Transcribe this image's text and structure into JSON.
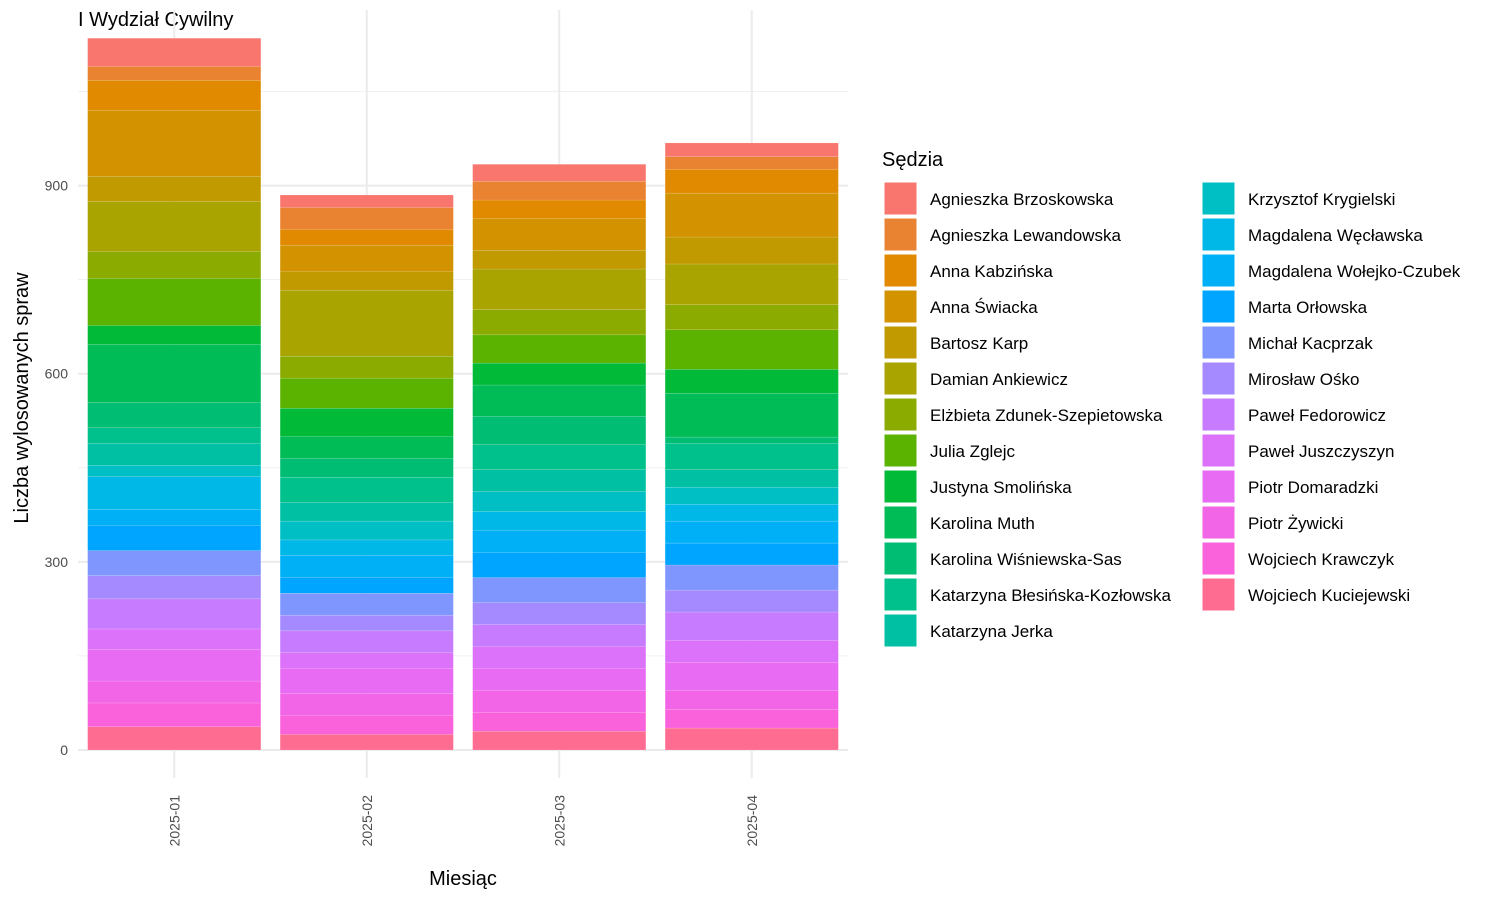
{
  "chart_data": {
    "type": "bar",
    "stacked": true,
    "title": "I Wydział Cywilny",
    "xlabel": "Miesiąc",
    "ylabel": "Liczba wylosowanych spraw",
    "legend_title": "Sędzia",
    "legend_position": "right",
    "grid": true,
    "ylim": [
      0,
      1180
    ],
    "yticks": [
      0,
      300,
      600,
      900
    ],
    "categories": [
      "2025-01",
      "2025-02",
      "2025-03",
      "2025-04"
    ],
    "series": [
      {
        "name": "Agnieszka Brzoskowska",
        "color": "#F8766D",
        "values": [
          45,
          20,
          27,
          22
        ]
      },
      {
        "name": "Agnieszka Lewandowska",
        "color": "#EA8331",
        "values": [
          22,
          35,
          30,
          20
        ]
      },
      {
        "name": "Anna Kabzińska",
        "color": "#E18A00",
        "values": [
          48,
          25,
          30,
          38
        ]
      },
      {
        "name": "Anna Świacka",
        "color": "#D39200",
        "values": [
          105,
          42,
          50,
          70
        ]
      },
      {
        "name": "Bartosz Karp",
        "color": "#C19A00",
        "values": [
          40,
          30,
          30,
          43
        ]
      },
      {
        "name": "Damian Ankiewicz",
        "color": "#AAA400",
        "values": [
          80,
          105,
          65,
          65
        ]
      },
      {
        "name": "Elżbieta Zdunek-Szepietowska",
        "color": "#8CAB00",
        "values": [
          43,
          35,
          40,
          40
        ]
      },
      {
        "name": "Julia Zglejc",
        "color": "#5BB300",
        "values": [
          75,
          48,
          45,
          63
        ]
      },
      {
        "name": "Justyna Smolińska",
        "color": "#00BA38",
        "values": [
          30,
          45,
          35,
          38
        ]
      },
      {
        "name": "Karolina Muth",
        "color": "#00BC56",
        "values": [
          93,
          35,
          50,
          70
        ]
      },
      {
        "name": "Karolina Wiśniewska-Sas",
        "color": "#00BD74",
        "values": [
          40,
          30,
          45,
          10
        ]
      },
      {
        "name": "Katarzyna Błesińska-Kozłowska",
        "color": "#00C08B",
        "values": [
          25,
          40,
          40,
          42
        ]
      },
      {
        "name": "Katarzyna Jerka",
        "color": "#00C0A3",
        "values": [
          35,
          30,
          35,
          28
        ]
      },
      {
        "name": "Krzysztof Krygielski",
        "color": "#00BFC4",
        "values": [
          18,
          30,
          32,
          27
        ]
      },
      {
        "name": "Magdalena Węcławska",
        "color": "#00B8E7",
        "values": [
          53,
          25,
          30,
          27
        ]
      },
      {
        "name": "Magdalena Wołejko-Czubek",
        "color": "#00B0F6",
        "values": [
          25,
          35,
          35,
          35
        ]
      },
      {
        "name": "Marta Orłowska",
        "color": "#00A5FF",
        "values": [
          40,
          25,
          40,
          35
        ]
      },
      {
        "name": "Michał Kacprzak",
        "color": "#7F96FF",
        "values": [
          40,
          35,
          40,
          40
        ]
      },
      {
        "name": "Mirosław Ośko",
        "color": "#A58AFF",
        "values": [
          37,
          25,
          35,
          35
        ]
      },
      {
        "name": "Paweł Fedorowicz",
        "color": "#C77CFF",
        "values": [
          48,
          35,
          35,
          45
        ]
      },
      {
        "name": "Paweł Juszczyszyn",
        "color": "#DC71FA",
        "values": [
          33,
          25,
          35,
          35
        ]
      },
      {
        "name": "Piotr Domaradzki",
        "color": "#E76BF3",
        "values": [
          50,
          40,
          35,
          45
        ]
      },
      {
        "name": "Piotr Żywicki",
        "color": "#F265E7",
        "values": [
          35,
          35,
          35,
          30
        ]
      },
      {
        "name": "Wojciech Krawczyk",
        "color": "#FA62DB",
        "values": [
          38,
          30,
          30,
          30
        ]
      },
      {
        "name": "Wojciech Kuciejewski",
        "color": "#FF6C91",
        "values": [
          37,
          25,
          30,
          35
        ]
      }
    ]
  }
}
